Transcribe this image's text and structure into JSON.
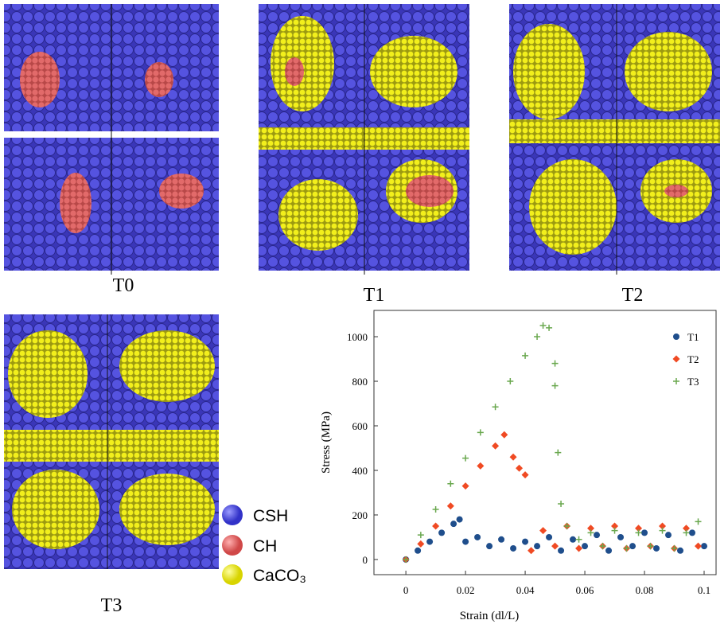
{
  "panels": [
    {
      "label": "T0"
    },
    {
      "label": "T1"
    },
    {
      "label": "T2"
    },
    {
      "label": "T3"
    }
  ],
  "legend": [
    {
      "label": "CSH"
    },
    {
      "label": "CH"
    },
    {
      "label": "CaCO₃"
    }
  ],
  "chart_data": {
    "type": "scatter",
    "xlabel": "Strain (dl/L)",
    "ylabel": "Stress (MPa)",
    "xlim": [
      -0.0107,
      0.104
    ],
    "ylim": [
      -68,
      1118
    ],
    "xticks": [
      0,
      0.02,
      0.04,
      0.06,
      0.08,
      0.1
    ],
    "yticks": [
      0,
      200,
      400,
      600,
      800,
      1000
    ],
    "legend_position": "upper right",
    "series": [
      {
        "name": "T1",
        "color": "#1f4e8c",
        "marker": "circle",
        "x": [
          0,
          0.004,
          0.008,
          0.012,
          0.016,
          0.018,
          0.02,
          0.024,
          0.028,
          0.032,
          0.036,
          0.04,
          0.044,
          0.048,
          0.052,
          0.056,
          0.06,
          0.064,
          0.068,
          0.072,
          0.076,
          0.08,
          0.084,
          0.088,
          0.092,
          0.096,
          0.1
        ],
        "values": [
          0,
          40,
          80,
          120,
          160,
          180,
          80,
          100,
          60,
          90,
          50,
          80,
          60,
          100,
          40,
          90,
          60,
          110,
          40,
          100,
          60,
          120,
          50,
          110,
          40,
          120,
          60
        ]
      },
      {
        "name": "T2",
        "color": "#f04a23",
        "marker": "diamond",
        "x": [
          0,
          0.005,
          0.01,
          0.015,
          0.02,
          0.025,
          0.03,
          0.033,
          0.036,
          0.038,
          0.04,
          0.042,
          0.046,
          0.05,
          0.054,
          0.058,
          0.062,
          0.066,
          0.07,
          0.074,
          0.078,
          0.082,
          0.086,
          0.09,
          0.094,
          0.098
        ],
        "values": [
          0,
          70,
          150,
          240,
          330,
          420,
          510,
          560,
          460,
          410,
          380,
          40,
          130,
          60,
          150,
          50,
          140,
          60,
          150,
          50,
          140,
          60,
          150,
          50,
          140,
          60
        ]
      },
      {
        "name": "T3",
        "color": "#6aa84f",
        "marker": "plus",
        "x": [
          0,
          0.005,
          0.01,
          0.015,
          0.02,
          0.025,
          0.03,
          0.035,
          0.04,
          0.044,
          0.046,
          0.048,
          0.05,
          0.05,
          0.051,
          0.052,
          0.054,
          0.058,
          0.062,
          0.066,
          0.07,
          0.074,
          0.078,
          0.082,
          0.086,
          0.09,
          0.094,
          0.098
        ],
        "values": [
          0,
          110,
          225,
          340,
          455,
          570,
          685,
          800,
          915,
          1000,
          1050,
          1040,
          880,
          780,
          480,
          250,
          150,
          90,
          120,
          60,
          130,
          50,
          120,
          60,
          130,
          50,
          120,
          170
        ]
      }
    ]
  }
}
